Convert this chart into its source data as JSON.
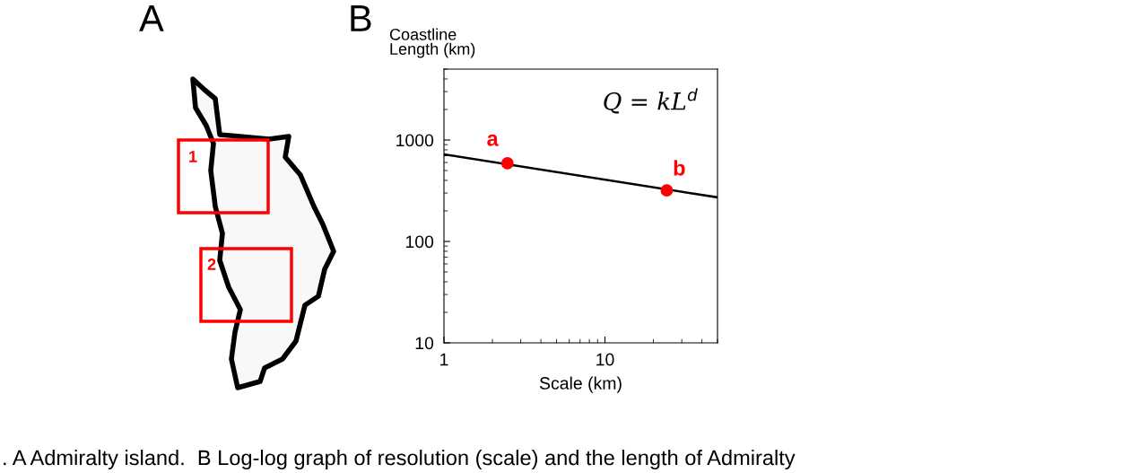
{
  "chart_data": {
    "type": "line",
    "title": "B",
    "xlabel": "Scale (km)",
    "ylabel": "Coastline\nLength (km)",
    "log": "xy",
    "xlim": [
      1,
      50
    ],
    "ylim": [
      10,
      5000
    ],
    "xticks": [
      1,
      10
    ],
    "yticks": [
      10,
      100,
      1000
    ],
    "grid": false,
    "legend": false,
    "marker": "none",
    "line_style": "solid",
    "series": [
      {
        "color": "#000000",
        "x": [
          1,
          50
        ],
        "values": [
          722,
          272
        ]
      },
      {
        "type": "scatter",
        "color": "#ff0000",
        "marker": "circle",
        "x": [
          2.48,
          24.2
        ],
        "values": [
          589,
          319
        ]
      }
    ],
    "annotations": [
      {
        "text": "a",
        "x": 2.48,
        "y": 589
      },
      {
        "text": "b",
        "x": 24.2,
        "y": 319
      },
      "Q = kL$^{d}$",
      "A",
      "1",
      "2",
      ". A Admiralty island.  B Log-log graph of resolution (scale) and the length of Admiralty"
    ]
  }
}
